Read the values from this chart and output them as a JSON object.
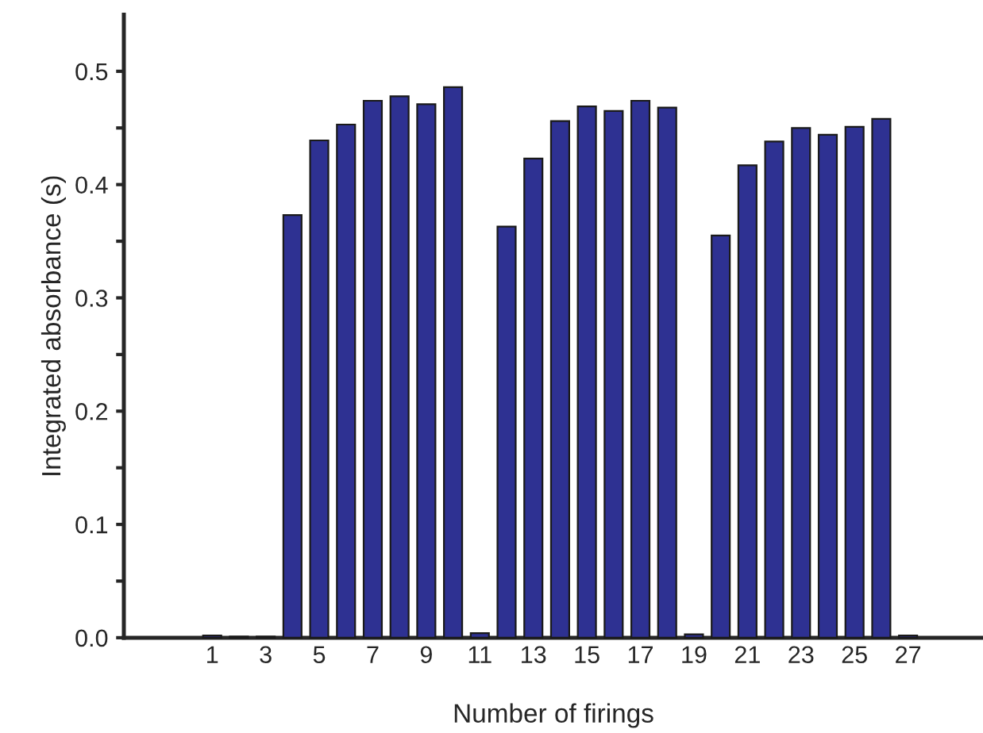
{
  "chart_data": {
    "type": "bar",
    "xlabel": "Number of firings",
    "ylabel": "Integrated absorbance (s)",
    "x": [
      1,
      2,
      3,
      4,
      5,
      6,
      7,
      8,
      9,
      10,
      11,
      12,
      13,
      14,
      15,
      16,
      17,
      18,
      19,
      20,
      21,
      22,
      23,
      24,
      25,
      26,
      27
    ],
    "series": [
      {
        "color": "#2e3192",
        "values": [
          0.002,
          0.001,
          0.001,
          0.373,
          0.439,
          0.453,
          0.474,
          0.478,
          0.471,
          0.486,
          0.004,
          0.363,
          0.423,
          0.456,
          0.469,
          0.465,
          0.474,
          0.468,
          0.003,
          0.355,
          0.417,
          0.438,
          0.45,
          0.444,
          0.451,
          0.458,
          0.002
        ]
      }
    ],
    "xlim": [
      -2.3,
      29.8
    ],
    "xticks": [
      1,
      3,
      5,
      7,
      9,
      11,
      13,
      15,
      17,
      19,
      21,
      23,
      25,
      27
    ],
    "ylim": [
      0,
      0.55
    ],
    "yticks": [
      {
        "value": 0,
        "label": "0.0"
      },
      {
        "value": 0.05,
        "label": null
      },
      0.1,
      {
        "value": 0.15,
        "label": null
      },
      0.2,
      {
        "value": 0.25,
        "label": null
      },
      0.3,
      {
        "value": 0.35,
        "label": null
      },
      0.4,
      {
        "value": 0.45,
        "label": null
      },
      0.5
    ],
    "grid": false,
    "legend": false
  }
}
